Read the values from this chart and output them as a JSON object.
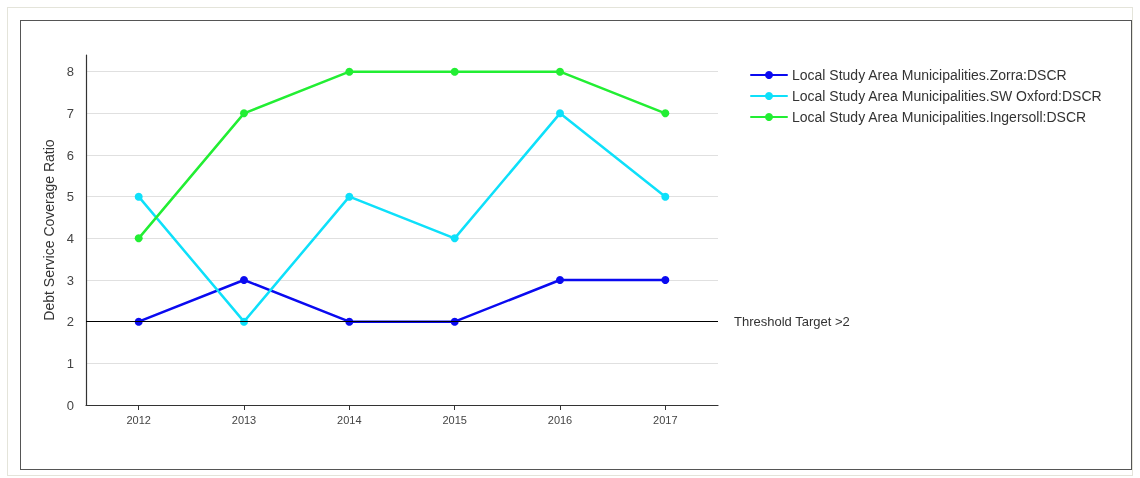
{
  "chart_data": {
    "type": "line",
    "ylabel": "Debt Service Coverage Ratio",
    "categories": [
      "2012",
      "2013",
      "2014",
      "2015",
      "2016",
      "2017"
    ],
    "series": [
      {
        "name": "Local Study Area Municipalities.Zorra:DSCR",
        "color": "#0a0af0",
        "values": [
          2,
          3,
          2,
          2,
          3,
          3
        ]
      },
      {
        "name": "Local Study Area Municipalities.SW Oxford:DSCR",
        "color": "#0ee0fa",
        "values": [
          5,
          2,
          5,
          4,
          7,
          5
        ]
      },
      {
        "name": "Local Study Area Municipalities.Ingersoll:DSCR",
        "color": "#22ee33",
        "values": [
          4,
          7,
          8,
          8,
          8,
          7
        ]
      }
    ],
    "ylim": [
      0,
      8.4
    ],
    "yticks": [
      0,
      1,
      2,
      3,
      4,
      5,
      6,
      7,
      8
    ],
    "grid": "y",
    "legend": "top right",
    "marker": "circle",
    "line_style": "solid",
    "ref_lines": [
      {
        "axis": "y",
        "value": 2,
        "label": "Threshold Target >2",
        "color": "#000000"
      }
    ]
  }
}
